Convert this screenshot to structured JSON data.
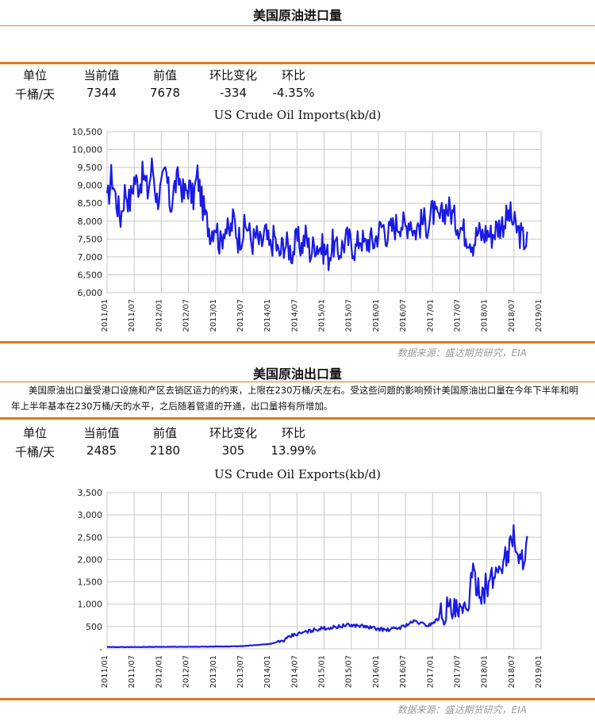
{
  "imports_section": {
    "title": "美国原油进口量",
    "headers": [
      "单位",
      "当前值",
      "前值",
      "环比变化",
      "环比"
    ],
    "values": [
      "千桶/天",
      "7344",
      "7678",
      "-334",
      "-4.35%"
    ],
    "source": "数据来源：盛达期货研究，EIA"
  },
  "exports_section": {
    "title": "美国原油出口量",
    "paragraph": "美国原油出口量受港口设施和产区去销区运力的约束，上限在230万桶/天左右。受这些问题的影响预计美国原油出口量在今年下半年和明年上半年基本在230万桶/天的水平，之后随着管道的开通，出口量将有所增加。",
    "headers": [
      "单位",
      "当前值",
      "前值",
      "环比变化",
      "环比"
    ],
    "values": [
      "千桶/天",
      "2485",
      "2180",
      "305",
      "13.99%"
    ],
    "source": "数据来源：盛达期货研究，EIA"
  },
  "colors": {
    "accent": "#e07a1a",
    "series": "#1a1ae6",
    "grid": "#c8c8c8"
  },
  "chart_data": [
    {
      "type": "line",
      "title": "US Crude Oil Imports(kb/d)",
      "xlabel": "",
      "ylabel": "",
      "x_ticks": [
        "2011/01",
        "2011/07",
        "2012/01",
        "2012/07",
        "2013/01",
        "2013/07",
        "2014/01",
        "2014/07",
        "2015/01",
        "2015/07",
        "2016/01",
        "2016/07",
        "2017/01",
        "2017/07",
        "2018/01",
        "2018/07",
        "2019/01"
      ],
      "y_ticks": [
        "6,000",
        "6,500",
        "7,000",
        "7,500",
        "8,000",
        "8,500",
        "9,000",
        "9,500",
        "10,000",
        "10,500"
      ],
      "ylim": [
        6000,
        10500
      ],
      "xlim": [
        "2011-01",
        "2019-01"
      ],
      "grid": true,
      "series": [
        {
          "values_monthly_approx": {
            "2011-01": 8450,
            "2011-02": 9300,
            "2011-03": 8600,
            "2011-04": 8100,
            "2011-05": 8900,
            "2011-06": 8500,
            "2011-07": 9200,
            "2011-08": 9000,
            "2011-09": 9300,
            "2011-10": 8800,
            "2011-11": 9600,
            "2011-12": 8600,
            "2012-01": 8900,
            "2012-02": 9400,
            "2012-03": 8400,
            "2012-04": 9000,
            "2012-05": 9200,
            "2012-06": 8700,
            "2012-07": 9000,
            "2012-08": 8600,
            "2012-09": 9300,
            "2012-10": 8500,
            "2012-11": 8000,
            "2012-12": 7700,
            "2013-01": 8000,
            "2013-02": 7300,
            "2013-03": 7900,
            "2013-04": 7600,
            "2013-05": 8100,
            "2013-06": 7500,
            "2013-07": 7700,
            "2013-08": 7900,
            "2013-09": 7400,
            "2013-10": 7600,
            "2013-11": 7300,
            "2013-12": 7700,
            "2014-01": 7200,
            "2014-02": 7600,
            "2014-03": 7000,
            "2014-04": 7400,
            "2014-05": 7300,
            "2014-06": 7100,
            "2014-07": 7500,
            "2014-08": 7300,
            "2014-09": 7600,
            "2014-10": 7100,
            "2014-11": 7400,
            "2014-12": 7300,
            "2015-01": 7200,
            "2015-02": 7000,
            "2015-03": 7400,
            "2015-04": 7100,
            "2015-05": 7300,
            "2015-06": 7500,
            "2015-07": 7400,
            "2015-08": 7200,
            "2015-09": 7600,
            "2015-10": 7300,
            "2015-11": 7500,
            "2015-12": 7400,
            "2016-01": 7700,
            "2016-02": 7900,
            "2016-03": 7600,
            "2016-04": 7800,
            "2016-05": 7900,
            "2016-06": 8000,
            "2016-07": 7800,
            "2016-08": 8100,
            "2016-09": 7700,
            "2016-10": 7900,
            "2016-11": 8000,
            "2016-12": 7900,
            "2017-01": 8300,
            "2017-02": 8000,
            "2017-03": 8100,
            "2017-04": 8400,
            "2017-05": 8300,
            "2017-06": 8000,
            "2017-07": 7900,
            "2017-08": 7700,
            "2017-09": 7600,
            "2017-10": 7400,
            "2017-11": 7700,
            "2017-12": 7600,
            "2018-01": 7700,
            "2018-02": 7600,
            "2018-03": 7800,
            "2018-04": 7900,
            "2018-05": 8000,
            "2018-06": 8200,
            "2018-07": 7900,
            "2018-08": 7700,
            "2018-09": 7500,
            "2018-10": 7400
          }
        }
      ]
    },
    {
      "type": "line",
      "title": "US Crude Oil Exports(kb/d)",
      "xlabel": "",
      "ylabel": "",
      "x_ticks": [
        "2011/01",
        "2011/07",
        "2012/01",
        "2012/07",
        "2013/01",
        "2013/07",
        "2014/01",
        "2014/07",
        "2015/01",
        "2015/07",
        "2016/01",
        "2016/07",
        "2017/01",
        "2017/07",
        "2018/01",
        "2018/07",
        "2019/01"
      ],
      "y_ticks": [
        "-",
        "500",
        "1,000",
        "1,500",
        "2,000",
        "2,500",
        "3,000",
        "3,500"
      ],
      "ylim": [
        0,
        3500
      ],
      "xlim": [
        "2011-01",
        "2019-01"
      ],
      "grid": true,
      "series": [
        {
          "values_monthly_approx": {
            "2011-01": 40,
            "2011-07": 40,
            "2012-01": 45,
            "2012-07": 45,
            "2013-01": 50,
            "2013-07": 60,
            "2014-01": 110,
            "2014-04": 180,
            "2014-06": 300,
            "2014-09": 380,
            "2014-12": 450,
            "2015-03": 480,
            "2015-06": 530,
            "2015-09": 520,
            "2015-12": 460,
            "2016-03": 420,
            "2016-06": 480,
            "2016-09": 620,
            "2016-12": 520,
            "2017-02": 650,
            "2017-04": 900,
            "2017-06": 800,
            "2017-08": 750,
            "2017-10": 1600,
            "2017-12": 1300,
            "2018-02": 1500,
            "2018-04": 1900,
            "2018-06": 2200,
            "2018-07": 2700,
            "2018-08": 1800,
            "2018-09": 2100,
            "2018-10": 2485
          }
        }
      ]
    }
  ]
}
